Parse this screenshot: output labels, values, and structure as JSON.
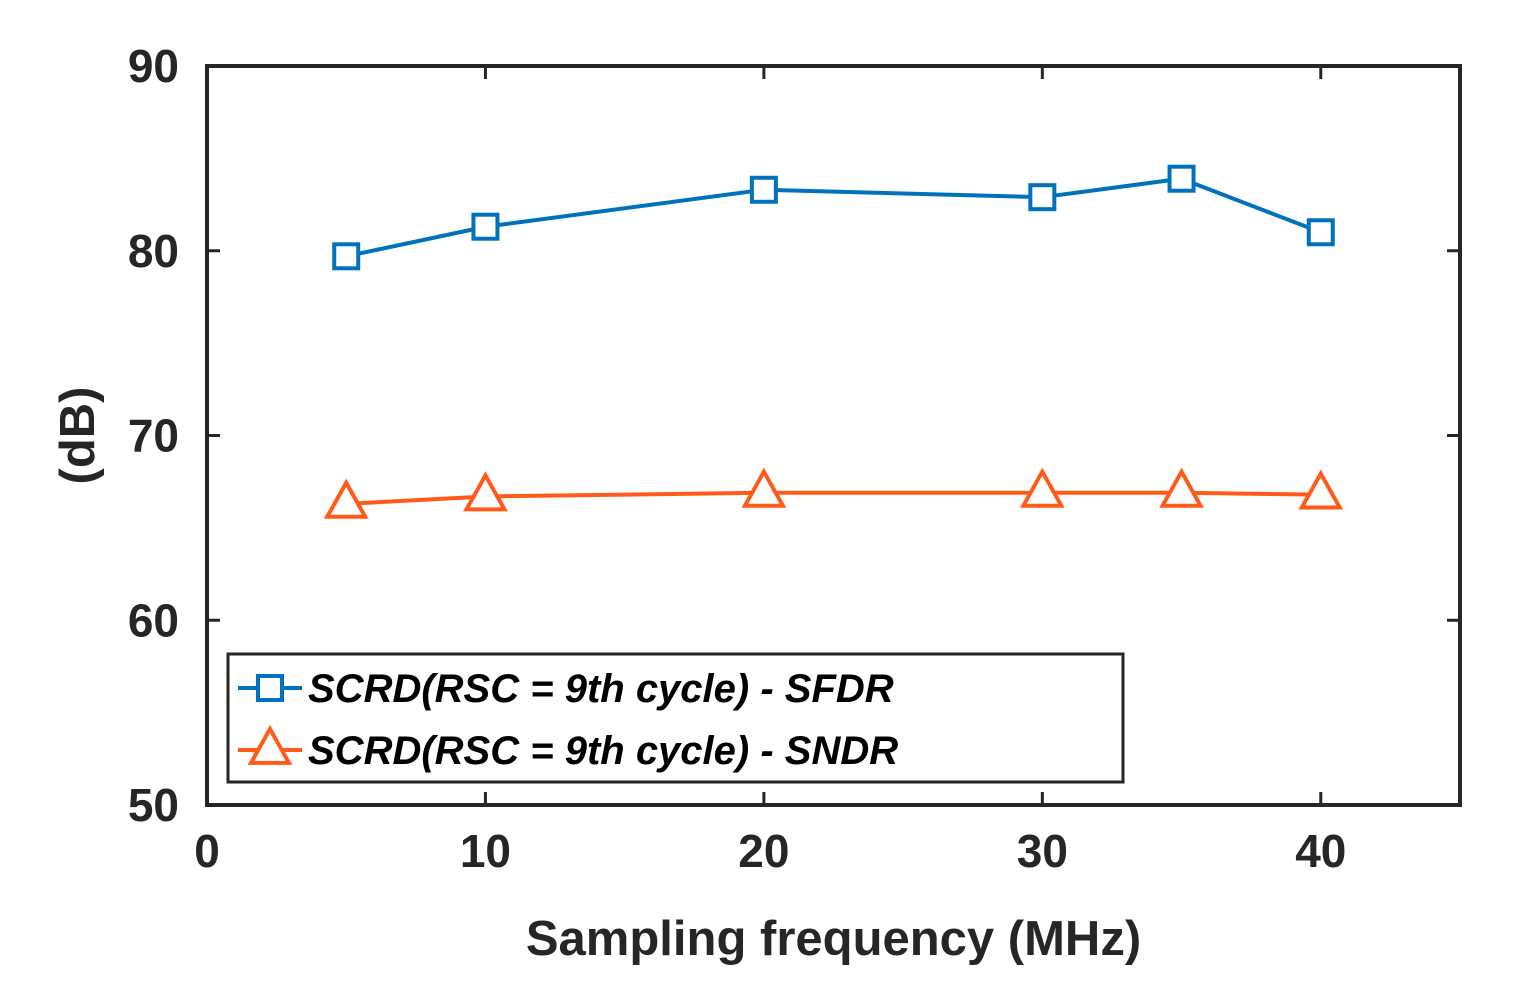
{
  "chart_data": {
    "type": "line",
    "xlabel": "Sampling frequency (MHz)",
    "ylabel": "(dB)",
    "xlim": [
      0,
      45
    ],
    "ylim": [
      50,
      90
    ],
    "xticks": [
      0,
      10,
      20,
      30,
      40
    ],
    "yticks": [
      50,
      60,
      70,
      80,
      90
    ],
    "grid": false,
    "legend_position": "bottom-left",
    "series": [
      {
        "name": "SCRD(RSC = 9th cycle) - SFDR",
        "marker": "square",
        "color": "#0072BD",
        "x": [
          5,
          10,
          20,
          30,
          35,
          40
        ],
        "y": [
          79.7,
          81.3,
          83.3,
          82.9,
          83.9,
          81.0
        ]
      },
      {
        "name": "SCRD(RSC = 9th cycle) - SNDR",
        "marker": "triangle",
        "color": "#FF5A1A",
        "x": [
          5,
          10,
          20,
          30,
          35,
          40
        ],
        "y": [
          66.3,
          66.7,
          66.9,
          66.9,
          66.9,
          66.8
        ]
      }
    ]
  }
}
